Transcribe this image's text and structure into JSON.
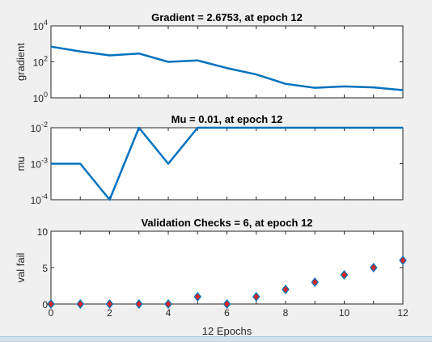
{
  "chart_data": [
    {
      "type": "line",
      "title": "Gradient = 2.6753, at epoch 12",
      "ylabel": "gradient",
      "xlabel": "",
      "yscale": "log",
      "ylim": [
        1,
        10000
      ],
      "xlim": [
        0,
        12
      ],
      "y_ticks": [
        {
          "v": 1,
          "base": "10",
          "exp": "0"
        },
        {
          "v": 100,
          "base": "10",
          "exp": "2"
        },
        {
          "v": 10000,
          "base": "10",
          "exp": "4"
        }
      ],
      "x": [
        0,
        1,
        2,
        3,
        4,
        5,
        6,
        7,
        8,
        9,
        10,
        11,
        12
      ],
      "values": [
        700,
        380,
        230,
        290,
        100,
        120,
        45,
        20,
        6,
        3.6,
        4.3,
        3.8,
        2.6753
      ],
      "color": "#0072bd"
    },
    {
      "type": "line",
      "title": "Mu = 0.01, at epoch 12",
      "ylabel": "mu",
      "xlabel": "",
      "yscale": "log",
      "ylim": [
        0.0001,
        0.01
      ],
      "xlim": [
        0,
        12
      ],
      "y_ticks": [
        {
          "v": 0.0001,
          "base": "10",
          "exp": "-4"
        },
        {
          "v": 0.001,
          "base": "10",
          "exp": "-3"
        },
        {
          "v": 0.01,
          "base": "10",
          "exp": "-2"
        }
      ],
      "x": [
        0,
        1,
        2,
        3,
        4,
        5,
        6,
        7,
        8,
        9,
        10,
        11,
        12
      ],
      "values": [
        0.001,
        0.001,
        0.0001,
        0.01,
        0.001,
        0.01,
        0.01,
        0.01,
        0.01,
        0.01,
        0.01,
        0.01,
        0.01
      ],
      "color": "#0072bd"
    },
    {
      "type": "scatter",
      "title": "Validation Checks = 6, at epoch 12",
      "ylabel": "val fail",
      "xlabel": "12 Epochs",
      "yscale": "linear",
      "ylim": [
        0,
        10
      ],
      "xlim": [
        0,
        12
      ],
      "y_ticks": [
        {
          "v": 0,
          "label": "0"
        },
        {
          "v": 5,
          "label": "5"
        },
        {
          "v": 10,
          "label": "10"
        }
      ],
      "x_ticks": [
        "0",
        "2",
        "4",
        "6",
        "8",
        "10",
        "12"
      ],
      "x": [
        0,
        1,
        2,
        3,
        4,
        5,
        6,
        7,
        8,
        9,
        10,
        11,
        12
      ],
      "values": [
        0,
        0,
        0,
        0,
        0,
        1,
        0,
        1,
        2,
        3,
        4,
        5,
        6
      ],
      "marker": "diamond",
      "marker_fill": "#d62728",
      "marker_edge": "#0072bd"
    }
  ]
}
